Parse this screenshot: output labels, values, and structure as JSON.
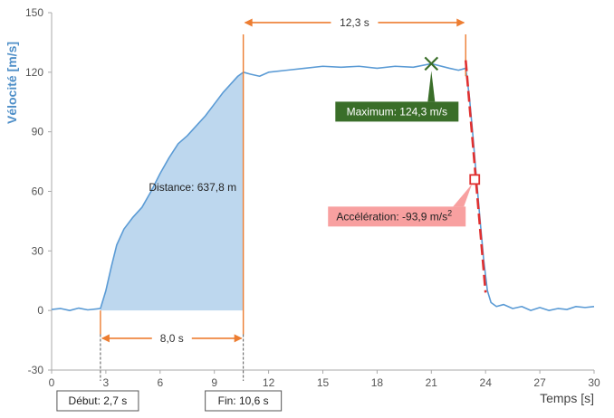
{
  "chart_data": {
    "type": "line",
    "xlabel": "Temps [s]",
    "ylabel": "Vélocité [m/s]",
    "xlim": [
      0,
      30
    ],
    "ylim": [
      -30,
      150
    ],
    "x_ticks": [
      0,
      3,
      6,
      9,
      12,
      15,
      18,
      21,
      24,
      27,
      30
    ],
    "y_ticks": [
      -30,
      0,
      30,
      60,
      90,
      120,
      150
    ],
    "grid": false,
    "series": [
      {
        "color": "#5b9bd5",
        "points": [
          [
            0,
            0.5
          ],
          [
            0.5,
            1
          ],
          [
            1,
            0
          ],
          [
            1.5,
            1.2
          ],
          [
            2,
            0.3
          ],
          [
            2.5,
            0.8
          ],
          [
            2.7,
            1
          ],
          [
            3.0,
            10
          ],
          [
            3.3,
            22
          ],
          [
            3.6,
            33
          ],
          [
            4.0,
            41
          ],
          [
            4.5,
            47
          ],
          [
            5.0,
            52
          ],
          [
            5.5,
            60
          ],
          [
            6.0,
            69
          ],
          [
            6.5,
            77
          ],
          [
            7.0,
            84
          ],
          [
            7.5,
            88
          ],
          [
            8.0,
            93
          ],
          [
            8.5,
            98
          ],
          [
            9.0,
            104
          ],
          [
            9.5,
            110
          ],
          [
            10.0,
            115
          ],
          [
            10.3,
            118
          ],
          [
            10.6,
            120
          ],
          [
            11.0,
            119
          ],
          [
            11.5,
            118
          ],
          [
            12.0,
            120
          ],
          [
            13.0,
            121
          ],
          [
            14.0,
            122
          ],
          [
            15.0,
            123
          ],
          [
            16.0,
            122.5
          ],
          [
            17.0,
            123
          ],
          [
            18.0,
            122
          ],
          [
            19.0,
            123
          ],
          [
            20.0,
            122.5
          ],
          [
            21.0,
            124.3
          ],
          [
            22.0,
            122
          ],
          [
            22.5,
            121
          ],
          [
            22.9,
            122
          ],
          [
            23.1,
            108
          ],
          [
            23.3,
            88
          ],
          [
            23.5,
            66
          ],
          [
            23.7,
            45
          ],
          [
            23.9,
            25
          ],
          [
            24.1,
            10
          ],
          [
            24.3,
            4
          ],
          [
            24.6,
            2
          ],
          [
            25.0,
            3
          ],
          [
            25.5,
            1
          ],
          [
            26.0,
            2
          ],
          [
            26.5,
            0
          ],
          [
            27.0,
            1.5
          ],
          [
            27.5,
            0
          ],
          [
            28.0,
            1
          ],
          [
            28.5,
            0.5
          ],
          [
            29.0,
            2
          ],
          [
            29.5,
            1.5
          ],
          [
            30.0,
            2
          ]
        ]
      }
    ],
    "shaded_area": {
      "x_start": 2.7,
      "x_end": 10.6,
      "color": "#bdd7ee"
    },
    "annotations": {
      "distance_label": "Distance: 637,8 m",
      "distance_label_x": 7.8,
      "distance_label_y": 62,
      "duration_8_label": "8,0 s",
      "duration_8_y": -14,
      "duration_12_label": "12,3 s",
      "duration_12_y": 145,
      "start_label": "Début: 2,7 s",
      "start_x": 2.7,
      "end_label": "Fin: 10,6 s",
      "end_x": 10.6,
      "plateau_end_x": 22.9,
      "maximum_label": "Maximum: 124,3 m/s",
      "maximum_point": [
        21.0,
        124.3
      ],
      "acceleration_label": "Accélération: -93,9 m/s",
      "acceleration_exponent": "2",
      "acceleration_point": [
        23.4,
        66
      ],
      "tangent_line": [
        [
          22.9,
          126
        ],
        [
          24.0,
          9
        ]
      ]
    },
    "colors": {
      "line": "#5b9bd5",
      "orange": "#ed7d31",
      "max_box": "#3a6e29",
      "max_marker": "#3a6e29",
      "accel_box": "#f8a0a0",
      "accel_marker": "#e03030",
      "tangent": "#e03030",
      "axis_title": "#4f8fc8"
    }
  }
}
